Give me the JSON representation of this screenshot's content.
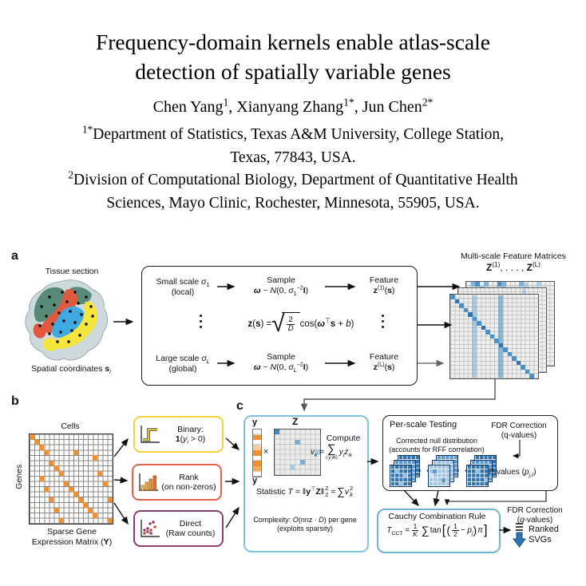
{
  "header": {
    "title_lines": [
      "Frequency-domain kernels enable atlas-scale",
      "detection of spatially variable genes"
    ],
    "authors": [
      {
        "t": "Chen Yang"
      },
      {
        "sup": "1"
      },
      {
        "t": ",  Xianyang Zhang"
      },
      {
        "sup": "1*"
      },
      {
        "t": ",  Jun Chen"
      },
      {
        "sup": "2*"
      }
    ],
    "affiliation1_line1": [
      {
        "sup": "1*"
      },
      {
        "t": "Department of Statistics, Texas A&M University, College Station,"
      }
    ],
    "affiliation1_line2": "Texas, 77843, USA.",
    "affiliation2_line1": [
      {
        "sup": "2"
      },
      {
        "t": "Division of Computational Biology, Department of Quantitative Health"
      }
    ],
    "affiliation2_line2": "Sciences, Mayo Clinic, Rochester, Minnesota, 55905, USA."
  },
  "figure": {
    "panel_a": {
      "label": "a",
      "tissue_label": "Tissue section",
      "coords_label": [
        {
          "t": "Spatial coordinates "
        },
        {
          "b": "s"
        },
        {
          "subi": "i"
        }
      ],
      "kernel_box": {
        "small_scale": [
          {
            "t": "Small scale "
          },
          {
            "i": "σ"
          },
          {
            "sub": "1"
          }
        ],
        "small_paren": "(local)",
        "sample_label": "Sample",
        "small_dist": [
          {
            "bi": "ω"
          },
          {
            "t": " ~ "
          },
          {
            "i": "N"
          },
          {
            "t": "(0, "
          },
          {
            "i": "σ"
          },
          {
            "sub": "1"
          },
          {
            "sup": "−2"
          },
          {
            "b": "I"
          },
          {
            "t": ")"
          }
        ],
        "feature_label": "Feature",
        "small_feature": [
          {
            "b": "z"
          },
          {
            "sup": "(1)"
          },
          {
            "t": "("
          },
          {
            "b": "s"
          },
          {
            "t": ")"
          }
        ],
        "formula_lhs": [
          {
            "b": "z"
          },
          {
            "t": "("
          },
          {
            "b": "s"
          },
          {
            "t": ") = "
          }
        ],
        "sqrt_num": "2",
        "sqrt_den": "D",
        "formula_rhs": [
          {
            "t": " cos("
          },
          {
            "bi": "ω"
          },
          {
            "sup": "⊤"
          },
          {
            "b": "s"
          },
          {
            "t": " + "
          },
          {
            "i": "b"
          },
          {
            "t": ")"
          }
        ],
        "large_scale": [
          {
            "t": "Large scale "
          },
          {
            "i": "σ"
          },
          {
            "subi": "L"
          }
        ],
        "large_paren": "(global)",
        "large_dist": [
          {
            "bi": "ω"
          },
          {
            "t": " ~ "
          },
          {
            "i": "N"
          },
          {
            "t": "(0, "
          },
          {
            "i": "σ"
          },
          {
            "subi": "L"
          },
          {
            "sup": "−2"
          },
          {
            "b": "I"
          },
          {
            "t": ")"
          }
        ],
        "large_feature": [
          {
            "b": "z"
          },
          {
            "sup": "(L)"
          },
          {
            "t": "("
          },
          {
            "b": "s"
          },
          {
            "t": ")"
          }
        ]
      },
      "matrices_title": "Multi-scale Feature Matrices",
      "matrices_sub": [
        {
          "b": "Z"
        },
        {
          "sup": "(1)"
        },
        {
          "t": ", . . . , "
        },
        {
          "b": "Z"
        },
        {
          "sup": "(L)"
        }
      ],
      "front_matrix": {
        "size": 5.5,
        "color": "#4a90c9",
        "cells": [
          [
            0,
            0
          ],
          [
            1,
            1,
            "#2e75b6"
          ],
          [
            2,
            2
          ],
          [
            3,
            3
          ],
          [
            4,
            4,
            "#2e75b6"
          ],
          [
            5,
            5
          ],
          [
            6,
            6
          ],
          [
            7,
            7,
            "#2e75b6"
          ],
          [
            8,
            8
          ],
          [
            9,
            9
          ],
          [
            10,
            10
          ],
          [
            11,
            11,
            "#2e75b6"
          ],
          [
            12,
            12
          ],
          [
            13,
            13
          ],
          [
            14,
            14
          ],
          [
            15,
            15,
            "#2e75b6"
          ],
          [
            16,
            16
          ],
          [
            17,
            17
          ],
          [
            18,
            18
          ]
        ]
      },
      "back_matrix": {
        "size": 5.5,
        "color": "#7fb3d9",
        "cells": [
          [
            1,
            0
          ],
          [
            2,
            0,
            "#4a90c9"
          ],
          [
            4,
            0
          ],
          [
            7,
            0,
            "#4a90c9"
          ],
          [
            8,
            0
          ],
          [
            12,
            0
          ],
          [
            16,
            0,
            "#a9cbe3"
          ],
          [
            3,
            1
          ],
          [
            8,
            1,
            "#a9cbe3"
          ]
        ]
      }
    },
    "panel_b": {
      "label": "b",
      "cells_label": "Cells",
      "genes_label": "Genes",
      "caption_line1": "Sparse Gene",
      "caption_line2": [
        {
          "t": "Expression Matrix ("
        },
        {
          "b": "Y"
        },
        {
          "t": ")"
        }
      ],
      "sparse_matrix": {
        "w": 6.1,
        "h": 6.55,
        "color": "#f09030",
        "cells": [
          [
            0,
            0
          ],
          [
            1,
            1
          ],
          [
            2,
            2
          ],
          [
            3,
            3
          ],
          [
            9,
            3
          ],
          [
            13,
            4
          ],
          [
            4,
            5
          ],
          [
            5,
            6
          ],
          [
            6,
            7
          ],
          [
            2,
            8
          ],
          [
            14,
            7
          ],
          [
            7,
            9
          ],
          [
            15,
            9
          ],
          [
            3,
            10
          ],
          [
            8,
            10
          ],
          [
            9,
            11
          ],
          [
            4,
            12
          ],
          [
            10,
            12
          ],
          [
            16,
            12
          ],
          [
            11,
            13
          ],
          [
            5,
            14
          ],
          [
            12,
            14
          ],
          [
            13,
            15
          ],
          [
            6,
            16
          ],
          [
            16,
            16
          ]
        ]
      },
      "binary": {
        "title": "Binary:",
        "formula": [
          {
            "b": "1"
          },
          {
            "t": "("
          },
          {
            "i": "y"
          },
          {
            "subi": "i"
          },
          {
            "t": " > 0)"
          }
        ],
        "border": "#f2cf43",
        "icon": "step-function-icon"
      },
      "rank": {
        "title": "Rank",
        "subtitle": "(on non-zeros)",
        "border": "#e8604a",
        "icon": "bar-chart-icon"
      },
      "direct": {
        "title": "Direct",
        "subtitle": "(Raw counts)",
        "border": "#8e3c6e",
        "icon": "scatter-dots-icon"
      }
    },
    "panel_c": {
      "label": "c",
      "y_top": "y",
      "y_bottom": "y",
      "times": "×",
      "z_label": "Z",
      "y_vector": {
        "w": 9.5,
        "h": 6.55,
        "color": "#f09030",
        "cells": [
          [
            0,
            1
          ],
          [
            0,
            3,
            "#f8cf9b"
          ],
          [
            0,
            4
          ],
          [
            0,
            6
          ],
          [
            0,
            7,
            "#f5ab5e"
          ]
        ]
      },
      "z_matrix": {
        "size": 6.33,
        "color": "#79afd7",
        "cells": [
          [
            0,
            0,
            "#3f87c5"
          ],
          [
            4,
            2
          ],
          [
            8,
            4,
            "#a9cbe3"
          ],
          [
            5,
            6
          ],
          [
            3,
            7,
            "#a9cbe3"
          ]
        ]
      },
      "compute_label": "Compute",
      "vk_lhs": [
        {
          "i": "v"
        },
        {
          "subi": "k"
        },
        {
          "t": " ="
        }
      ],
      "sum_symbol": "∑",
      "vk_under": [
        {
          "i": "i"
        },
        {
          "t": ":"
        },
        {
          "i": "y"
        },
        {
          "subi": "i"
        },
        {
          "t": "≠0"
        }
      ],
      "vk_rhs": [
        {
          "i": "y"
        },
        {
          "subi": "i"
        },
        {
          "i": "z"
        },
        {
          "subi": "ik"
        }
      ],
      "statistic_pre": [
        {
          "t": "Statistic "
        },
        {
          "i": "T"
        },
        {
          "t": " = ‖"
        },
        {
          "b": "y"
        },
        {
          "sup": "⊤"
        },
        {
          "b": "Z"
        },
        {
          "t": "‖"
        }
      ],
      "norm_sup": "2",
      "norm_sub": "2",
      "statistic_eq": "=",
      "statistic_sum": "∑",
      "statistic_v": "v",
      "v_sup": "2",
      "v_sub": "k",
      "complexity_line1": [
        {
          "t": "Complexity: "
        },
        {
          "i": "O"
        },
        {
          "t": "(nnz · "
        },
        {
          "i": "D"
        },
        {
          "t": ") per gene"
        }
      ],
      "complexity_line2": "(exploits sparsity)"
    },
    "per_scale": {
      "title": "Per-scale Testing",
      "fdr_line1": "FDR Correction",
      "fdr_line2": "(q-values)",
      "null_line1": "Corrected null distribution",
      "null_line2": "(accounts for RFF correlation)",
      "dots": "· · ·",
      "pvalues": [
        {
          "t": "P-values ("
        },
        {
          "i": "p"
        },
        {
          "subi": "j,ℓ"
        },
        {
          "t": ")"
        }
      ],
      "stack1_cells": {
        "size": 5.2,
        "color": "#9cc3e5",
        "cells": [
          [
            1,
            1
          ],
          [
            3,
            2
          ],
          [
            2,
            4
          ]
        ]
      },
      "stack2_cells": {
        "size": 5.2,
        "color": "#5b9bd5",
        "cells": [
          [
            1,
            1
          ],
          [
            3,
            3
          ],
          [
            0,
            2,
            "#cfe4f4"
          ]
        ]
      },
      "stack3_cells": {
        "size": 5.2,
        "color": "#9cc3e5",
        "cells": [
          [
            2,
            1
          ],
          [
            4,
            3
          ]
        ]
      }
    },
    "cauchy": {
      "title": "Cauchy Combination Rule",
      "t_lhs": [
        {
          "i": "T"
        },
        {
          "sub": "CCT"
        },
        {
          "t": " ="
        }
      ],
      "frac1_num": "1",
      "frac1_den": "K",
      "sum_symbol": "∑",
      "tan_label": "tan",
      "bracket_open": "[",
      "paren_open": "(",
      "frac2_num": "1",
      "frac2_den": "2",
      "minus_p": [
        {
          "t": "− "
        },
        {
          "i": "p"
        },
        {
          "subi": "j"
        }
      ],
      "paren_close": ")",
      "pi_symbol": "π",
      "bracket_close": "]",
      "fdr_line1": "FDR Correction",
      "fdr_line2": [
        {
          "t": "("
        },
        {
          "i": "q"
        },
        {
          "t": "-values)"
        }
      ],
      "ranked_line1": "Ranked",
      "ranked_line2": "SVGs"
    },
    "colors": {
      "accent_blue": "#7fc4de",
      "matrix_blue": "#3f87c5",
      "dark_blue": "#2e75b6",
      "light_blue": "#9cc3e5",
      "orange": "#f09030",
      "yellow_border": "#f2cf43",
      "red_border": "#e8604a",
      "purple_border": "#8e3c6e",
      "tissue_green": "#578b77",
      "tissue_red": "#e0593f",
      "tissue_blue": "#3fa9e0",
      "tissue_yellow": "#f6e53a"
    }
  }
}
